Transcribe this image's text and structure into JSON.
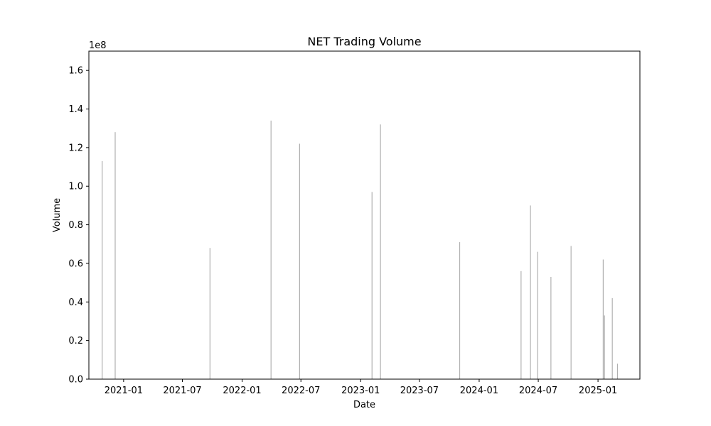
{
  "chart_data": {
    "type": "bar",
    "title": "NET Trading Volume",
    "xlabel": "Date",
    "ylabel": "Volume",
    "y_offset_label": "1e8",
    "ylim": [
      0,
      1.7
    ],
    "xlim": [
      "2020-09-16",
      "2025-05-10"
    ],
    "grid": false,
    "bar_color": "#b0b0b0",
    "x_ticks": [
      {
        "date": "2021-01-01",
        "label": "2021-01"
      },
      {
        "date": "2021-07-01",
        "label": "2021-07"
      },
      {
        "date": "2022-01-01",
        "label": "2022-01"
      },
      {
        "date": "2022-07-01",
        "label": "2022-07"
      },
      {
        "date": "2023-01-01",
        "label": "2023-01"
      },
      {
        "date": "2023-07-01",
        "label": "2023-07"
      },
      {
        "date": "2024-01-01",
        "label": "2024-01"
      },
      {
        "date": "2024-07-01",
        "label": "2024-07"
      },
      {
        "date": "2025-01-01",
        "label": "2025-01"
      }
    ],
    "y_ticks": [
      {
        "value": 0.0,
        "label": "0.0"
      },
      {
        "value": 0.2,
        "label": "0.2"
      },
      {
        "value": 0.4,
        "label": "0.4"
      },
      {
        "value": 0.6,
        "label": "0.6"
      },
      {
        "value": 0.8,
        "label": "0.8"
      },
      {
        "value": 1.0,
        "label": "1.0"
      },
      {
        "value": 1.2,
        "label": "1.2"
      },
      {
        "value": 1.4,
        "label": "1.4"
      },
      {
        "value": 1.6,
        "label": "1.6"
      }
    ],
    "series": [
      {
        "x": [
          "2020-10-27",
          "2020-12-06",
          "2021-09-24",
          "2022-03-31",
          "2022-06-27",
          "2023-02-05",
          "2023-03-03",
          "2023-11-02",
          "2024-05-09",
          "2024-06-07",
          "2024-06-29",
          "2024-08-09",
          "2024-10-10",
          "2025-01-17",
          "2025-01-21",
          "2025-02-14",
          "2025-03-02"
        ],
        "values": [
          1.13,
          1.28,
          0.68,
          1.34,
          1.22,
          0.97,
          1.32,
          0.71,
          0.56,
          0.9,
          0.66,
          0.53,
          0.69,
          0.62,
          0.33,
          0.42,
          0.08
        ]
      }
    ]
  }
}
